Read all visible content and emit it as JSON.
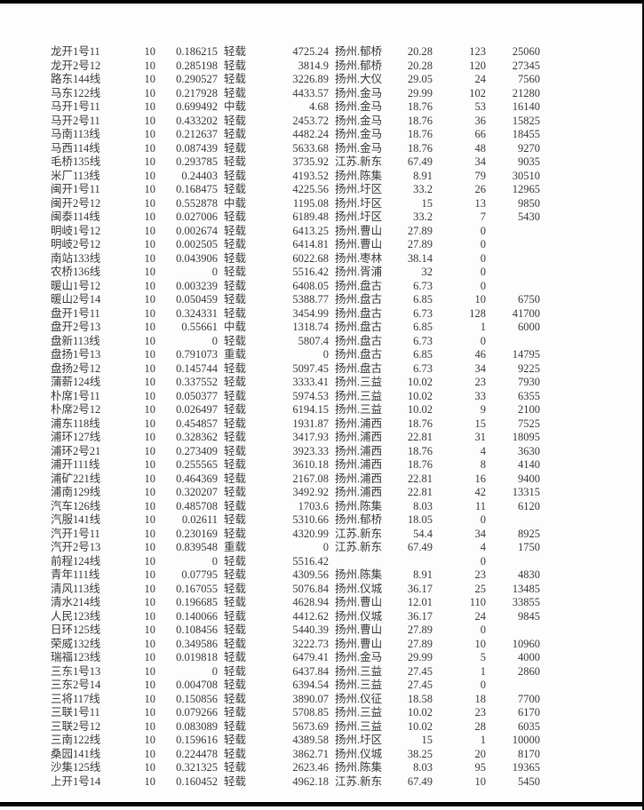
{
  "page": {
    "background_color": "#fdfdfd",
    "border_color": "#010101",
    "text_color": "#3c3c3c"
  },
  "table": {
    "load_levels": [
      "轻载",
      "中载",
      "重载"
    ],
    "rows": [
      [
        "龙开1号11",
        "10",
        "0.186215",
        "轻载",
        "4725.24",
        "扬州.郁桥",
        "20.28",
        "123",
        "25060"
      ],
      [
        "龙开2号12",
        "10",
        "0.285198",
        "轻载",
        "3814.9",
        "扬州.郁桥",
        "20.28",
        "120",
        "27345"
      ],
      [
        "路东144线",
        "10",
        "0.290527",
        "轻载",
        "3226.89",
        "扬州.大仪",
        "29.05",
        "24",
        "7560"
      ],
      [
        "马东122线",
        "10",
        "0.217928",
        "轻载",
        "4433.57",
        "扬州.金马",
        "29.99",
        "102",
        "21280"
      ],
      [
        "马开1号11",
        "10",
        "0.699492",
        "中载",
        "4.68",
        "扬州.金马",
        "18.76",
        "53",
        "16140"
      ],
      [
        "马开2号11",
        "10",
        "0.433202",
        "轻载",
        "2453.72",
        "扬州.金马",
        "18.76",
        "36",
        "15825"
      ],
      [
        "马南113线",
        "10",
        "0.212637",
        "轻载",
        "4482.24",
        "扬州.金马",
        "18.76",
        "66",
        "18455"
      ],
      [
        "马西114线",
        "10",
        "0.087439",
        "轻载",
        "5633.68",
        "扬州.金马",
        "18.76",
        "48",
        "9270"
      ],
      [
        "毛桥135线",
        "10",
        "0.293785",
        "轻载",
        "3735.92",
        "江苏.新东",
        "67.49",
        "34",
        "9035"
      ],
      [
        "米厂113线",
        "10",
        "0.24403",
        "轻载",
        "4193.52",
        "扬州.陈集",
        "8.91",
        "79",
        "30510"
      ],
      [
        "闽开1号11",
        "10",
        "0.168475",
        "轻载",
        "4225.56",
        "扬州.圩区",
        "33.2",
        "26",
        "12965"
      ],
      [
        "闽开2号12",
        "10",
        "0.552878",
        "中载",
        "1195.08",
        "扬州.圩区",
        "15",
        "13",
        "9850"
      ],
      [
        "闽泰114线",
        "10",
        "0.027006",
        "轻载",
        "6189.48",
        "扬州.圩区",
        "33.2",
        "7",
        "5430"
      ],
      [
        "明岐1号12",
        "10",
        "0.002674",
        "轻载",
        "6413.25",
        "扬州.曹山",
        "27.89",
        "0",
        ""
      ],
      [
        "明岐2号12",
        "10",
        "0.002505",
        "轻载",
        "6414.81",
        "扬州.曹山",
        "27.89",
        "0",
        ""
      ],
      [
        "南站133线",
        "10",
        "0.043906",
        "轻载",
        "6022.68",
        "扬州.枣林",
        "38.14",
        "0",
        ""
      ],
      [
        "农桥136线",
        "10",
        "0",
        "轻载",
        "5516.42",
        "扬州.胥浦",
        "32",
        "0",
        ""
      ],
      [
        "暖山1号12",
        "10",
        "0.003239",
        "轻载",
        "6408.05",
        "扬州.盘古",
        "6.73",
        "0",
        ""
      ],
      [
        "暖山2号14",
        "10",
        "0.050459",
        "轻载",
        "5388.77",
        "扬州.盘古",
        "6.85",
        "10",
        "6750"
      ],
      [
        "盘开1号11",
        "10",
        "0.324331",
        "轻载",
        "3454.99",
        "扬州.盘古",
        "6.73",
        "128",
        "41700"
      ],
      [
        "盘开2号13",
        "10",
        "0.55661",
        "中载",
        "1318.74",
        "扬州.盘古",
        "6.85",
        "1",
        "6000"
      ],
      [
        "盘新113线",
        "10",
        "0",
        "轻载",
        "5807.4",
        "扬州.盘古",
        "6.73",
        "0",
        ""
      ],
      [
        "盘扬1号13",
        "10",
        "0.791073",
        "重载",
        "0",
        "扬州.盘古",
        "6.85",
        "46",
        "14795"
      ],
      [
        "盘扬2号12",
        "10",
        "0.145744",
        "轻载",
        "5097.45",
        "扬州.盘古",
        "6.73",
        "34",
        "9225"
      ],
      [
        "蒲薪124线",
        "10",
        "0.337552",
        "轻载",
        "3333.41",
        "扬州.三益",
        "10.02",
        "23",
        "7930"
      ],
      [
        "朴席1号11",
        "10",
        "0.050377",
        "轻载",
        "5974.53",
        "扬州.三益",
        "10.02",
        "33",
        "6355"
      ],
      [
        "朴席2号12",
        "10",
        "0.026497",
        "轻载",
        "6194.15",
        "扬州.三益",
        "10.02",
        "9",
        "2100"
      ],
      [
        "浦东118线",
        "10",
        "0.454857",
        "轻载",
        "1931.87",
        "扬州.浦西",
        "18.76",
        "15",
        "7525"
      ],
      [
        "浦环127线",
        "10",
        "0.328362",
        "轻载",
        "3417.93",
        "扬州.浦西",
        "22.81",
        "31",
        "18095"
      ],
      [
        "浦环2号21",
        "10",
        "0.273409",
        "轻载",
        "3923.33",
        "扬州.浦西",
        "18.76",
        "4",
        "3630"
      ],
      [
        "浦开111线",
        "10",
        "0.255565",
        "轻载",
        "3610.18",
        "扬州.浦西",
        "18.76",
        "8",
        "4140"
      ],
      [
        "浦矿221线",
        "10",
        "0.464369",
        "轻载",
        "2167.08",
        "扬州.浦西",
        "22.81",
        "16",
        "9400"
      ],
      [
        "浦南129线",
        "10",
        "0.320207",
        "轻载",
        "3492.92",
        "扬州.浦西",
        "22.81",
        "42",
        "13315"
      ],
      [
        "汽车126线",
        "10",
        "0.485708",
        "轻载",
        "1703.6",
        "扬州.陈集",
        "8.03",
        "11",
        "6120"
      ],
      [
        "汽服141线",
        "10",
        "0.02611",
        "轻载",
        "5310.66",
        "扬州.郁桥",
        "18.05",
        "0",
        ""
      ],
      [
        "汽开1号11",
        "10",
        "0.230169",
        "轻载",
        "4320.99",
        "江苏.新东",
        "54.4",
        "34",
        "8925"
      ],
      [
        "汽开2号13",
        "10",
        "0.839548",
        "重载",
        "0",
        "江苏.新东",
        "67.49",
        "4",
        "1750"
      ],
      [
        "前程124线",
        "10",
        "0",
        "轻载",
        "5516.42",
        "",
        "",
        "0",
        ""
      ],
      [
        "青年111线",
        "10",
        "0.07795",
        "轻载",
        "4309.56",
        "扬州.陈集",
        "8.91",
        "23",
        "4830"
      ],
      [
        "清风113线",
        "10",
        "0.167055",
        "轻载",
        "5076.84",
        "扬州.仪城",
        "36.17",
        "25",
        "13485"
      ],
      [
        "清水214线",
        "10",
        "0.196685",
        "轻载",
        "4628.94",
        "扬州.曹山",
        "12.01",
        "110",
        "33855"
      ],
      [
        "人民123线",
        "10",
        "0.140066",
        "轻载",
        "4412.62",
        "扬州.仪城",
        "36.17",
        "24",
        "9845"
      ],
      [
        "日环125线",
        "10",
        "0.108456",
        "轻载",
        "5440.39",
        "扬州.曹山",
        "27.89",
        "0",
        ""
      ],
      [
        "荣威132线",
        "10",
        "0.349586",
        "轻载",
        "3222.73",
        "扬州.曹山",
        "27.89",
        "10",
        "10960"
      ],
      [
        "瑞福123线",
        "10",
        "0.019818",
        "轻载",
        "6479.41",
        "扬州.金马",
        "29.99",
        "5",
        "4000"
      ],
      [
        "三东1号13",
        "10",
        "0",
        "轻载",
        "6437.84",
        "扬州.三益",
        "27.45",
        "1",
        "2860"
      ],
      [
        "三东2号14",
        "10",
        "0.004708",
        "轻载",
        "6394.54",
        "扬州.三益",
        "27.45",
        "0",
        ""
      ],
      [
        "三将117线",
        "10",
        "0.150856",
        "轻载",
        "3890.07",
        "扬州.仪征",
        "18.58",
        "18",
        "7700"
      ],
      [
        "三联1号11",
        "10",
        "0.079266",
        "轻载",
        "5708.85",
        "扬州.三益",
        "10.02",
        "23",
        "6170"
      ],
      [
        "三联2号12",
        "10",
        "0.083089",
        "轻载",
        "5673.69",
        "扬州.三益",
        "10.02",
        "28",
        "6035"
      ],
      [
        "三南122线",
        "10",
        "0.159616",
        "轻载",
        "4389.58",
        "扬州.圩区",
        "15",
        "1",
        "10000"
      ],
      [
        "桑园141线",
        "10",
        "0.224478",
        "轻载",
        "3862.71",
        "扬州.仪城",
        "38.25",
        "20",
        "8170"
      ],
      [
        "沙集125线",
        "10",
        "0.321325",
        "轻载",
        "2623.46",
        "扬州.陈集",
        "8.03",
        "95",
        "19365"
      ],
      [
        "上开1号14",
        "10",
        "0.160452",
        "轻载",
        "4962.18",
        "江苏.新东",
        "67.49",
        "10",
        "5450"
      ]
    ]
  }
}
